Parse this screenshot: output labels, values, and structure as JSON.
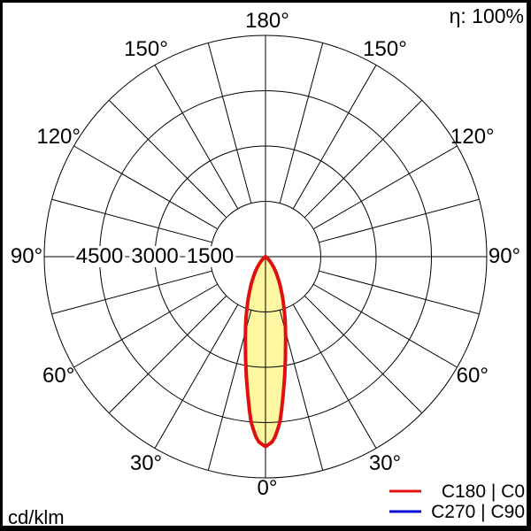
{
  "header": {
    "efficiency_label": "η: 100%"
  },
  "footer": {
    "unit_label": "cd/klm"
  },
  "legend": {
    "items": [
      {
        "label": "C180 | C0",
        "color": "#e01010"
      },
      {
        "label": "C270 | C90",
        "color": "#0a0ad2"
      }
    ]
  },
  "colors": {
    "grid": "#000000",
    "beam_fill": "#fcf7a0",
    "beam_outline": "#e01010",
    "background": "#ffffff"
  },
  "chart_data": {
    "type": "polar",
    "units": "cd/klm",
    "orientation": "0° at bottom, 180° at top, labels mirrored left/right",
    "angle_labels": [
      "0°",
      "30°",
      "60°",
      "90°",
      "120°",
      "150°",
      "180°"
    ],
    "angle_label_step_deg": 30,
    "spoke_step_deg": 15,
    "radial_ticks": [
      1500,
      3000,
      4500
    ],
    "radial_tick_labels": [
      "1500",
      "3000",
      "4500"
    ],
    "radial_max": 6000,
    "grid": true,
    "legend_position": "bottom-right",
    "series": [
      {
        "name": "C180 | C0",
        "color": "#e01010",
        "fill": "#fcf7a0",
        "symmetric_about_0deg": true,
        "angles_deg": [
          0,
          2.5,
          5,
          7.5,
          10,
          12.5,
          15,
          17.5,
          20,
          25,
          30,
          35,
          40,
          45,
          50,
          55,
          60
        ],
        "values_cd_klm": [
          5150,
          5000,
          4500,
          3700,
          3050,
          2500,
          2100,
          1750,
          1450,
          1000,
          680,
          450,
          280,
          150,
          60,
          20,
          0
        ]
      },
      {
        "name": "C270 | C90",
        "color": "#0a0ad2",
        "curve_visible": false,
        "angles_deg": [],
        "values_cd_klm": []
      }
    ]
  }
}
